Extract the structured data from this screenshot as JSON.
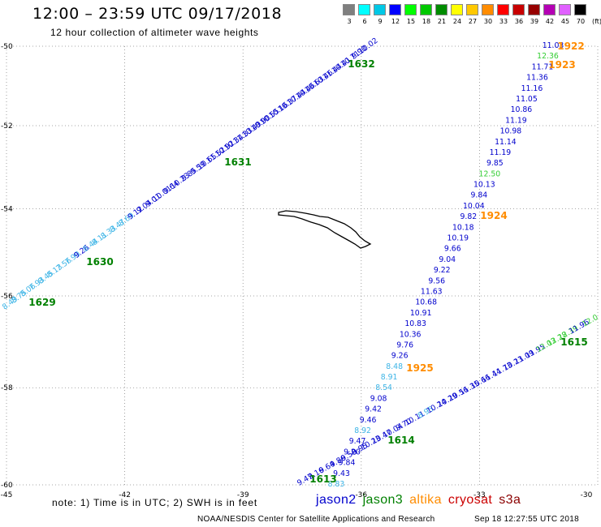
{
  "header": {
    "title": "12:00 – 23:59 UTC 09/17/2018",
    "subtitle": "12 hour collection of altimeter wave heights"
  },
  "legend": {
    "levels": [
      "3",
      "6",
      "9",
      "12",
      "15",
      "18",
      "21",
      "24",
      "27",
      "30",
      "33",
      "36",
      "39",
      "42",
      "45",
      "70"
    ],
    "unit": "(ft)",
    "colors": [
      "#7f7f7f",
      "#00ffff",
      "#00c8e6",
      "#0000ff",
      "#00ff00",
      "#00c800",
      "#008c00",
      "#ffff00",
      "#ffc800",
      "#ff8c00",
      "#ff0000",
      "#c80000",
      "#960000",
      "#b400b4",
      "#e060ff",
      "#000000"
    ]
  },
  "map": {
    "lon_ticks": [
      "-45",
      "-42",
      "-39",
      "-36",
      "-33",
      "-30"
    ],
    "lat_ticks": [
      "-50",
      "-52",
      "-54",
      "-56",
      "-58",
      "-60"
    ],
    "satellite_colors": {
      "jason2": "#0000cd",
      "jason3": "#008000",
      "altika": "#ff8c00",
      "cryosat": "#cc0000",
      "s3a": "#8b0000"
    },
    "level_colors": {
      "light_cyan": "#3cb4e6",
      "light_green": "#32cd32",
      "blue": "#0000cd"
    },
    "tracks": [
      {
        "id": "track-1629-1632",
        "pass_labels": [
          {
            "text": "1629",
            "color": "jason3"
          },
          {
            "text": "1630",
            "color": "jason3"
          },
          {
            "text": "1631",
            "color": "jason3"
          },
          {
            "text": "1632",
            "color": "jason3"
          }
        ],
        "values": [
          {
            "v": "8.49",
            "c": "light_cyan"
          },
          {
            "v": "8.75",
            "c": "light_cyan"
          },
          {
            "v": "8.06",
            "c": "light_cyan"
          },
          {
            "v": "7.93",
            "c": "light_cyan"
          },
          {
            "v": "8.45",
            "c": "light_cyan"
          },
          {
            "v": "8.13",
            "c": "light_cyan"
          },
          {
            "v": "7.56",
            "c": "light_cyan"
          },
          {
            "v": "7.90",
            "c": "light_cyan"
          },
          {
            "v": "9.26",
            "c": "blue"
          },
          {
            "v": "8.44",
            "c": "light_cyan"
          },
          {
            "v": "8.11",
            "c": "light_cyan"
          },
          {
            "v": "8.33",
            "c": "light_cyan"
          },
          {
            "v": "8.47",
            "c": "light_cyan"
          },
          {
            "v": "8.69",
            "c": "light_cyan"
          },
          {
            "v": "9.12",
            "c": "blue"
          },
          {
            "v": "9.04",
            "c": "blue"
          },
          {
            "v": "9.01",
            "c": "blue"
          },
          {
            "v": "10.01",
            "c": "blue"
          },
          {
            "v": "9.64",
            "c": "blue"
          },
          {
            "v": "10.23",
            "c": "blue"
          },
          {
            "v": "9.85",
            "c": "blue"
          },
          {
            "v": "9.59",
            "c": "blue"
          },
          {
            "v": "10.65",
            "c": "blue"
          },
          {
            "v": "11.52",
            "c": "blue"
          },
          {
            "v": "10.92",
            "c": "blue"
          },
          {
            "v": "10.34",
            "c": "blue"
          },
          {
            "v": "11.33",
            "c": "blue"
          },
          {
            "v": "10.49",
            "c": "blue"
          },
          {
            "v": "10.90",
            "c": "blue"
          },
          {
            "v": "10.55",
            "c": "blue"
          },
          {
            "v": "10.16",
            "c": "blue"
          },
          {
            "v": "10.37",
            "c": "blue"
          },
          {
            "v": "10.44",
            "c": "blue"
          },
          {
            "v": "10.46",
            "c": "blue"
          },
          {
            "v": "10.63",
            "c": "blue"
          },
          {
            "v": "10.46",
            "c": "blue"
          },
          {
            "v": "11.44",
            "c": "blue"
          },
          {
            "v": "10.41",
            "c": "blue"
          },
          {
            "v": "10.71",
            "c": "blue"
          },
          {
            "v": "9.90",
            "c": "blue"
          },
          {
            "v": "10.02",
            "c": "blue"
          }
        ]
      },
      {
        "id": "track-1922-1925",
        "pass_labels": [
          {
            "text": "1922",
            "color": "altika"
          },
          {
            "text": "1923",
            "color": "altika"
          },
          {
            "text": "1924",
            "color": "altika"
          },
          {
            "text": "1925",
            "color": "altika"
          }
        ],
        "values": [
          {
            "v": "11.03",
            "c": "blue"
          },
          {
            "v": "12.36",
            "c": "light_green"
          },
          {
            "v": "11.71",
            "c": "blue"
          },
          {
            "v": "11.36",
            "c": "blue"
          },
          {
            "v": "11.16",
            "c": "blue"
          },
          {
            "v": "11.05",
            "c": "blue"
          },
          {
            "v": "10.86",
            "c": "blue"
          },
          {
            "v": "11.19",
            "c": "blue"
          },
          {
            "v": "10.98",
            "c": "blue"
          },
          {
            "v": "11.14",
            "c": "blue"
          },
          {
            "v": "11.19",
            "c": "blue"
          },
          {
            "v": "9.85",
            "c": "blue"
          },
          {
            "v": "12.50",
            "c": "light_green"
          },
          {
            "v": "10.13",
            "c": "blue"
          },
          {
            "v": "9.84",
            "c": "blue"
          },
          {
            "v": "10.04",
            "c": "blue"
          },
          {
            "v": "9.82",
            "c": "blue"
          },
          {
            "v": "10.18",
            "c": "blue"
          },
          {
            "v": "10.19",
            "c": "blue"
          },
          {
            "v": "9.66",
            "c": "blue"
          },
          {
            "v": "9.04",
            "c": "blue"
          },
          {
            "v": "9.22",
            "c": "blue"
          },
          {
            "v": "9.56",
            "c": "blue"
          },
          {
            "v": "11.63",
            "c": "blue"
          },
          {
            "v": "10.68",
            "c": "blue"
          },
          {
            "v": "10.91",
            "c": "blue"
          },
          {
            "v": "10.83",
            "c": "blue"
          },
          {
            "v": "10.36",
            "c": "blue"
          },
          {
            "v": "9.76",
            "c": "blue"
          },
          {
            "v": "9.26",
            "c": "blue"
          },
          {
            "v": "8.48",
            "c": "light_cyan"
          },
          {
            "v": "8.91",
            "c": "light_cyan"
          },
          {
            "v": "8.54",
            "c": "light_cyan"
          },
          {
            "v": "9.08",
            "c": "blue"
          },
          {
            "v": "9.42",
            "c": "blue"
          },
          {
            "v": "9.46",
            "c": "blue"
          },
          {
            "v": "8.92",
            "c": "light_cyan"
          },
          {
            "v": "9.47",
            "c": "blue"
          },
          {
            "v": "9.20",
            "c": "blue"
          },
          {
            "v": "9.84",
            "c": "blue"
          },
          {
            "v": "9.43",
            "c": "blue"
          },
          {
            "v": "8.83",
            "c": "light_cyan"
          }
        ]
      },
      {
        "id": "track-1613-1615",
        "pass_labels": [
          {
            "text": "1613",
            "color": "jason3"
          },
          {
            "text": "1614",
            "color": "jason3"
          },
          {
            "text": "1615",
            "color": "jason3"
          }
        ],
        "values": [
          {
            "v": "9.47",
            "c": "blue"
          },
          {
            "v": "9.16",
            "c": "blue"
          },
          {
            "v": "9.64",
            "c": "blue"
          },
          {
            "v": "9.86",
            "c": "blue"
          },
          {
            "v": "9.50",
            "c": "blue"
          },
          {
            "v": "9.95",
            "c": "blue"
          },
          {
            "v": "10.23",
            "c": "blue"
          },
          {
            "v": "10.47",
            "c": "blue"
          },
          {
            "v": "10.04",
            "c": "blue"
          },
          {
            "v": "9.70",
            "c": "blue"
          },
          {
            "v": "10.11",
            "c": "blue"
          },
          {
            "v": "8.95",
            "c": "light_cyan"
          },
          {
            "v": "10.24",
            "c": "blue"
          },
          {
            "v": "10.29",
            "c": "blue"
          },
          {
            "v": "10.56",
            "c": "blue"
          },
          {
            "v": "11.35",
            "c": "blue"
          },
          {
            "v": "10.66",
            "c": "blue"
          },
          {
            "v": "11.44",
            "c": "blue"
          },
          {
            "v": "11.73",
            "c": "blue"
          },
          {
            "v": "10.23",
            "c": "blue"
          },
          {
            "v": "11.09",
            "c": "blue"
          },
          {
            "v": "11.95",
            "c": "blue"
          },
          {
            "v": "12.03",
            "c": "light_green"
          },
          {
            "v": "12.28",
            "c": "light_green"
          },
          {
            "v": "12.39",
            "c": "light_green"
          },
          {
            "v": "11.96",
            "c": "blue"
          },
          {
            "v": "12.0",
            "c": "light_green"
          }
        ]
      }
    ]
  },
  "footer": {
    "note": "note: 1) Time is in UTC; 2) SWH is in feet",
    "satellites": [
      {
        "name": "jason2",
        "key": "jason2"
      },
      {
        "name": "jason3",
        "key": "jason3"
      },
      {
        "name": "altika",
        "key": "altika"
      },
      {
        "name": "cryosat",
        "key": "cryosat"
      },
      {
        "name": "s3a",
        "key": "s3a"
      }
    ],
    "credit": "NOAA/NESDIS Center for Satellite Applications and Research",
    "timestamp": "Sep 18 12:27:55 UTC 2018"
  }
}
